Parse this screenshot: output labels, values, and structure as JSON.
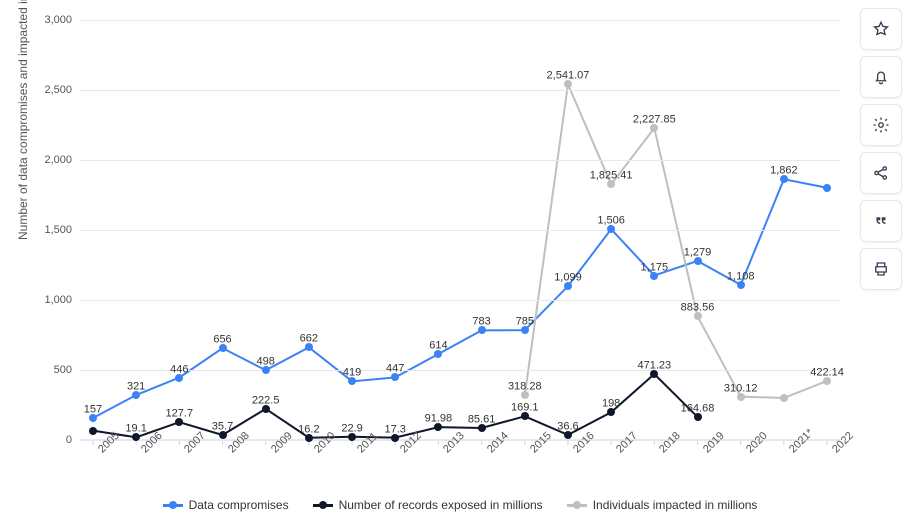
{
  "chart": {
    "type": "line",
    "y_axis_label": "Number of data compromises and impacted individuals",
    "y_axis_label_fontsize": 12,
    "ylim": [
      0,
      3000
    ],
    "ytick_step": 500,
    "yticks": [
      0,
      500,
      1000,
      1500,
      2000,
      2500,
      3000
    ],
    "x_categories": [
      "2005",
      "2006",
      "2007",
      "2008",
      "2009",
      "2010",
      "2011",
      "2012",
      "2013",
      "2014",
      "2015",
      "2016",
      "2017",
      "2018",
      "2019",
      "2020",
      "2021*",
      "2022"
    ],
    "grid_color": "#e5e7eb",
    "axis_line_color": "#cbd5e1",
    "background_color": "#ffffff",
    "label_color": "#555555",
    "data_label_fontsize": 11,
    "tick_fontsize": 11,
    "line_width": 2,
    "marker_size": 8,
    "series": [
      {
        "name": "Data compromises",
        "color": "#3b82f6",
        "values": [
          157,
          321,
          446,
          656,
          498,
          662,
          419,
          447,
          614,
          783,
          785,
          1099,
          1506,
          1175,
          1279,
          1108,
          1862,
          1802
        ],
        "labels": [
          "157",
          "321",
          "446",
          "656",
          "498",
          "662",
          "419",
          "447",
          "614",
          "783",
          "785",
          "1,099",
          "1,506",
          "1,175",
          "1,279",
          "1,108",
          "1,862",
          ""
        ]
      },
      {
        "name": "Number of records exposed in millions",
        "color": "#0f172a",
        "values": [
          66.9,
          19.1,
          127.7,
          35.7,
          222.5,
          16.2,
          22.9,
          17.3,
          91.98,
          85.61,
          169.1,
          36.6,
          198,
          471.23,
          164.68,
          null,
          null,
          null
        ],
        "labels": [
          "",
          "19.1",
          "127.7",
          "35.7",
          "222.5",
          "16.2",
          "22.9",
          "17.3",
          "91.98",
          "85.61",
          "169.1",
          "36.6",
          "198",
          "471.23",
          "164.68",
          "",
          "",
          ""
        ]
      },
      {
        "name": "Individuals impacted in millions",
        "color": "#bfbfbf",
        "values": [
          null,
          null,
          null,
          null,
          null,
          null,
          null,
          null,
          null,
          null,
          318.28,
          2541.07,
          1825.41,
          2227.85,
          883.56,
          310.12,
          300,
          422.14
        ],
        "labels": [
          "",
          "",
          "",
          "",
          "",
          "",
          "",
          "",
          "",
          "",
          "318.28",
          "2,541.07",
          "1,825.41",
          "2,227.85",
          "883.56",
          "310.12",
          "",
          "422.14"
        ]
      }
    ],
    "legend": {
      "position": "bottom",
      "items": [
        "Data compromises",
        "Number of records exposed in millions",
        "Individuals impacted in millions"
      ]
    }
  },
  "toolbar": {
    "icons": [
      "star",
      "bell",
      "gear",
      "share",
      "quote",
      "print"
    ]
  }
}
